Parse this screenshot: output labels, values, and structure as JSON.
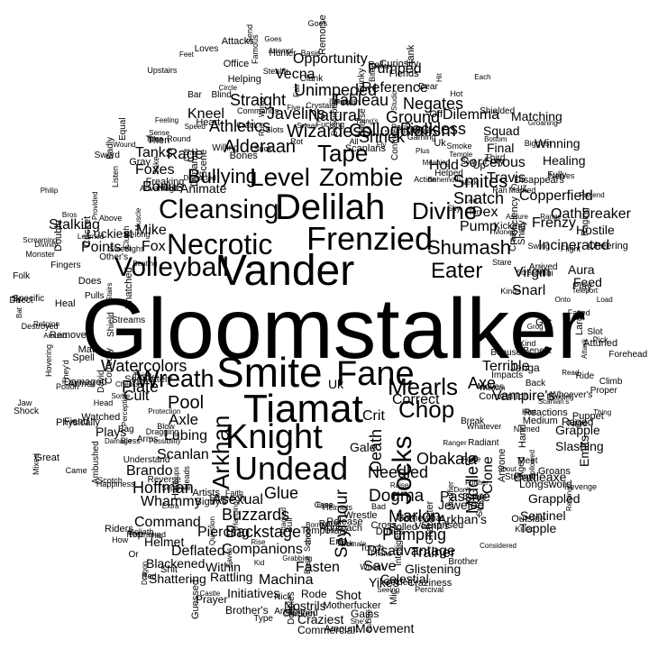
{
  "words": [
    {
      "text": "Gloomstalker",
      "v": false
    },
    {
      "text": "Vander",
      "v": false
    },
    {
      "text": "Smite",
      "v": false
    },
    {
      "text": "Tiamat",
      "v": false
    },
    {
      "text": "Knight",
      "v": false
    },
    {
      "text": "Fane",
      "v": false
    },
    {
      "text": "Undead",
      "v": false
    },
    {
      "text": "Delilah",
      "v": false
    },
    {
      "text": "Zombie",
      "v": false
    },
    {
      "text": "Frenzied",
      "v": false
    },
    {
      "text": "Necrotic",
      "v": false
    },
    {
      "text": "Volleyball",
      "v": false
    },
    {
      "text": "Cleansing",
      "v": false
    },
    {
      "text": "Wreath",
      "v": false
    },
    {
      "text": "Level",
      "v": false
    },
    {
      "text": "Tape",
      "v": false
    },
    {
      "text": "Jocks",
      "v": true
    },
    {
      "text": "Arkhan",
      "v": true
    },
    {
      "text": "Mearls",
      "v": false
    },
    {
      "text": "Chop",
      "v": false
    },
    {
      "text": "Divine",
      "v": false
    },
    {
      "text": "Eater",
      "v": false
    },
    {
      "text": "Shumash",
      "v": false
    },
    {
      "text": "Colloquialism",
      "v": false
    },
    {
      "text": "Wizardess",
      "v": false
    },
    {
      "text": "Pool",
      "v": false
    },
    {
      "text": "Axle",
      "v": false
    },
    {
      "text": "Plate",
      "v": false
    },
    {
      "text": "Obakala",
      "v": false
    },
    {
      "text": "Needled",
      "v": false
    },
    {
      "text": "Dogma",
      "v": false
    },
    {
      "text": "Bullying",
      "v": false
    },
    {
      "text": "Alderaan",
      "v": false
    },
    {
      "text": "Smites",
      "v": false
    },
    {
      "text": "Snatch",
      "v": false
    },
    {
      "text": "Pump",
      "v": false
    },
    {
      "text": "Axe",
      "v": false
    },
    {
      "text": "Terrible",
      "v": false
    },
    {
      "text": "Death",
      "v": true
    },
    {
      "text": "Seymour",
      "v": true
    },
    {
      "text": "Glue",
      "v": false
    },
    {
      "text": "Marlon",
      "v": false
    },
    {
      "text": "Pumping",
      "v": false
    },
    {
      "text": "Buzzards",
      "v": false
    },
    {
      "text": "Hoffman",
      "v": false
    },
    {
      "text": "Scanlan",
      "v": false
    },
    {
      "text": "Brando",
      "v": false
    },
    {
      "text": "Lubing",
      "v": false
    },
    {
      "text": "Cult",
      "v": false
    },
    {
      "text": "Crit",
      "v": false
    },
    {
      "text": "Correct",
      "v": false
    },
    {
      "text": "Passive",
      "v": false
    },
    {
      "text": "Vampire's",
      "v": false
    },
    {
      "text": "Jenga",
      "v": false
    },
    {
      "text": "Middle's",
      "v": true
    },
    {
      "text": "Clone",
      "v": true
    },
    {
      "text": "Emits",
      "v": true
    },
    {
      "text": "Gale",
      "v": false
    },
    {
      "text": "Uk",
      "v": false
    },
    {
      "text": "Shriek",
      "v": false
    },
    {
      "text": "Tableau",
      "v": false
    },
    {
      "text": "Ground",
      "v": false
    },
    {
      "text": "Negates",
      "v": false
    },
    {
      "text": "Reckless",
      "v": false
    },
    {
      "text": "Dilemma",
      "v": false
    },
    {
      "text": "Hold",
      "v": false
    },
    {
      "text": "Sorcerous",
      "v": false
    },
    {
      "text": "Copperfield",
      "v": false
    },
    {
      "text": "Frenzy",
      "v": false
    },
    {
      "text": "Incinerated",
      "v": false
    },
    {
      "text": "Virgin",
      "v": false
    },
    {
      "text": "Snarl",
      "v": false
    },
    {
      "text": "Aura",
      "v": false
    },
    {
      "text": "Feed",
      "v": false
    },
    {
      "text": "Oathbreaker",
      "v": false
    },
    {
      "text": "Hostile",
      "v": false
    },
    {
      "text": "Dex",
      "v": false
    },
    {
      "text": "Travis",
      "v": false
    },
    {
      "text": "Matching",
      "v": false
    },
    {
      "text": "Winning",
      "v": false
    },
    {
      "text": "Healing",
      "v": false
    },
    {
      "text": "Squad",
      "v": false
    },
    {
      "text": "Final",
      "v": false
    },
    {
      "text": "Javelins",
      "v": false
    },
    {
      "text": "Athletics",
      "v": false
    },
    {
      "text": "Natural",
      "v": false
    },
    {
      "text": "Straight",
      "v": false
    },
    {
      "text": "Unimpeded",
      "v": false
    },
    {
      "text": "Reference",
      "v": false
    },
    {
      "text": "Vecna",
      "v": false
    },
    {
      "text": "Opportunity",
      "v": false
    },
    {
      "text": "Pumped",
      "v": false
    },
    {
      "text": "Kneel",
      "v": false
    },
    {
      "text": "Rage",
      "v": false
    },
    {
      "text": "Tanks",
      "v": false
    },
    {
      "text": "Foxes",
      "v": false
    },
    {
      "text": "Bonus",
      "v": false
    },
    {
      "text": "Animate",
      "v": false
    },
    {
      "text": "Fox",
      "v": false
    },
    {
      "text": "Mike",
      "v": false
    },
    {
      "text": "Points",
      "v": false
    },
    {
      "text": "Luckiest",
      "v": false
    },
    {
      "text": "Stalking",
      "v": false
    },
    {
      "text": "Watercolors",
      "v": false
    },
    {
      "text": "Plays",
      "v": false
    },
    {
      "text": "Whammy",
      "v": false
    },
    {
      "text": "Asexual",
      "v": false
    },
    {
      "text": "Command",
      "v": false
    },
    {
      "text": "Piercing",
      "v": false
    },
    {
      "text": "Backstage",
      "v": false
    },
    {
      "text": "Companions",
      "v": false
    },
    {
      "text": "Fasten",
      "v": false
    },
    {
      "text": "Save",
      "v": false
    },
    {
      "text": "Yikes",
      "v": false
    },
    {
      "text": "Disadvantage",
      "v": false
    },
    {
      "text": "Trainer",
      "v": false
    },
    {
      "text": "Celestial",
      "v": false
    },
    {
      "text": "Glistening",
      "v": false
    },
    {
      "text": "Arkhan's",
      "v": false
    },
    {
      "text": "Jeweled",
      "v": false
    },
    {
      "text": "Battleaxe",
      "v": false
    },
    {
      "text": "Longsword",
      "v": false
    },
    {
      "text": "Grappled",
      "v": false
    },
    {
      "text": "Sentinel",
      "v": false
    },
    {
      "text": "Topple",
      "v": false
    },
    {
      "text": "Slashing",
      "v": false
    },
    {
      "text": "Grapple",
      "v": false
    },
    {
      "text": "Raged",
      "v": false
    },
    {
      "text": "Deflated",
      "v": false
    },
    {
      "text": "Within",
      "v": false
    },
    {
      "text": "Rattling",
      "v": false
    },
    {
      "text": "Machina",
      "v": false
    },
    {
      "text": "Initiatives",
      "v": false
    },
    {
      "text": "Brother's",
      "v": false
    },
    {
      "text": "Nostrils",
      "v": false
    },
    {
      "text": "Craziest",
      "v": false
    },
    {
      "text": "Commercial",
      "v": false
    },
    {
      "text": "Movement",
      "v": false
    },
    {
      "text": "Gains",
      "v": false
    },
    {
      "text": "Shot",
      "v": false
    },
    {
      "text": "Rode",
      "v": false
    },
    {
      "text": "Blackened",
      "v": false
    },
    {
      "text": "Helmet",
      "v": false
    },
    {
      "text": "Shattering",
      "v": false
    },
    {
      "text": "Prayer",
      "v": false
    },
    {
      "text": "Cleansing2",
      "v": false
    }
  ],
  "small_words": [
    "Reading",
    "Scanlan's",
    "Named",
    "Whatever",
    "Radiant",
    "Convention",
    "Medium",
    "Strength",
    "Revenge",
    "Don't",
    "Further",
    "Killed",
    "Surprised",
    "Modifier",
    "Damn",
    "Trick",
    "Percival",
    "Intelligent",
    "Craziness",
    "Stunned",
    "Helmets",
    "Touch",
    "She's",
    "Grabbing",
    "Chicken",
    "Motherfucker",
    "Rope",
    "Castle",
    "Attacked",
    "Guessed",
    "Faith",
    "Rise",
    "Groups",
    "Heads",
    "Extra",
    "Goliath",
    "Scotch",
    "Dragon",
    "Separate",
    "Understand",
    "Damage",
    "Watched",
    "Great",
    "Physically",
    "Shock",
    "Separately",
    "Matt",
    "Spell",
    "Head",
    "Shield",
    "They'd",
    "Learned",
    "Around",
    "Specific",
    "Belong",
    "Provided",
    "Sweet",
    "Beating",
    "Cricket",
    "Clutch",
    "Double",
    "Advantage",
    "Shirt",
    "Upstairs",
    "Speed",
    "Sword",
    "Sake",
    "Helping",
    "Feeling",
    "Stealth",
    "Circle",
    "Hunter",
    "Wings",
    "Attacks",
    "Famous",
    "Paladin",
    "Commands",
    "Funky",
    "Fucking",
    "Clank",
    "Bite",
    "Fair",
    "Fly",
    "Fiends",
    "Scanlans",
    "Shielded",
    "Horse",
    "Smoke",
    "Helped",
    "Responsible",
    "Gaming",
    "Groaning",
    "Meaning",
    "Temple",
    "Biggest",
    "Flight",
    "Kicking",
    "Swing",
    "Marked",
    "Teleport",
    "Shitty",
    "Scream",
    "Grog",
    "Onto",
    "Large",
    "Puppet",
    "Got",
    "Hint",
    "Slot",
    "Read",
    "Impacts",
    "Forehead",
    "Thing",
    "Anyone",
    "Moves",
    "Ranger",
    "Relying",
    "Aged",
    "Shout",
    "Meet",
    "Rolled",
    "Raise",
    "Brother",
    "Bubble",
    "Duties",
    "Dude",
    "Case",
    "Amount",
    "Golden",
    "End",
    "Nick",
    "Mic",
    "Base",
    "Bro",
    "Elf",
    "Bull",
    "Borrow",
    "Kid",
    "Red",
    "Screech",
    "Saves",
    "His",
    "How",
    "Top",
    "Or",
    "Protection",
    "Mixed",
    "Bag",
    "Hurt",
    "Riders",
    "Ambushed",
    "Checks",
    "Twist",
    "Bless",
    "Armor",
    "Perception",
    "David",
    "Jaw",
    "Bat",
    "Snatched",
    "Streams",
    "Sly",
    "Does",
    "Bros",
    "Folk",
    "Philip",
    "Pulls",
    "Listen",
    "Other's",
    "Badly",
    "Then",
    "Nine",
    "Sense",
    "Heart",
    "Cut",
    "Round",
    "Feet",
    "Rub",
    "Suck",
    "Attempt",
    "Bar",
    "Bones",
    "Blind",
    "Crack",
    "Swear",
    "Send",
    "Basic",
    "Remorse",
    "Greater",
    "Curiosity",
    "Thing's",
    "Vegas",
    "Tank",
    "Studio",
    "Dear",
    "Each",
    "Bottom",
    "Control",
    "Fury",
    "Behemoth",
    "Nerves",
    "Neck",
    "Range",
    "Sky",
    "Fully",
    "Cheering",
    "Proficiency",
    "Raging",
    "Disappears",
    "Pretend",
    "Money",
    "Crazy",
    "Bonuses",
    "Back",
    "Pick",
    "Reactions",
    "Wisdom",
    "Attack",
    "Attuned",
    "Proper",
    "Groans",
    "Ride",
    "Whoever's",
    "Strike",
    "Break",
    "Considered",
    "Followed",
    "Character",
    "Force",
    "Outside",
    "Bad",
    "Phone",
    "Seeing",
    "Somewhat",
    "Cross",
    "Wrestle",
    "Vecna's",
    "Temporary",
    "Whom",
    "Release",
    "Eyes",
    "Doubles",
    "Approach",
    "Female",
    "Question",
    "School",
    "Another",
    "Type",
    "Shit",
    "Bigby's",
    "Reverse",
    "Restrained",
    "Hanging",
    "Possibility",
    "Happiness",
    "Artists",
    "Blow",
    "Arms",
    "Dragging",
    "Potion",
    "Cock",
    "Damaged",
    "Fiend",
    "Came",
    "Correctly",
    "Religion",
    "Some",
    "Fingers",
    "Heal",
    "Direct",
    "Hovering",
    "Divinity",
    "Remove",
    "Destroyed",
    "Sighs",
    "Screaming",
    "Monster",
    "Stairs",
    "Time",
    "Above",
    "Wound",
    "Distracted",
    "Willing",
    "Muscle",
    "Freaking",
    "Office",
    "Gray",
    "Equal",
    "Goes",
    "Scene",
    "Dynamic",
    "Slots",
    "Loves",
    "Crystals",
    "Five",
    "Description",
    "Roll",
    "Goes2",
    "Its",
    "Rot",
    "Hit",
    "Uk2",
    "Action",
    "Off",
    "All",
    "Paul",
    "Hot",
    "Plus",
    "Third",
    "Ten",
    "Up",
    "Assure",
    "Ran",
    "Soul",
    "Cuz",
    "Led",
    "Play",
    "Faced",
    "Stare",
    "Kinds",
    "Arrived",
    "Climb",
    "Benefit",
    "Mini",
    "Kind",
    "Load",
    "Hand",
    "Nine2"
  ]
}
